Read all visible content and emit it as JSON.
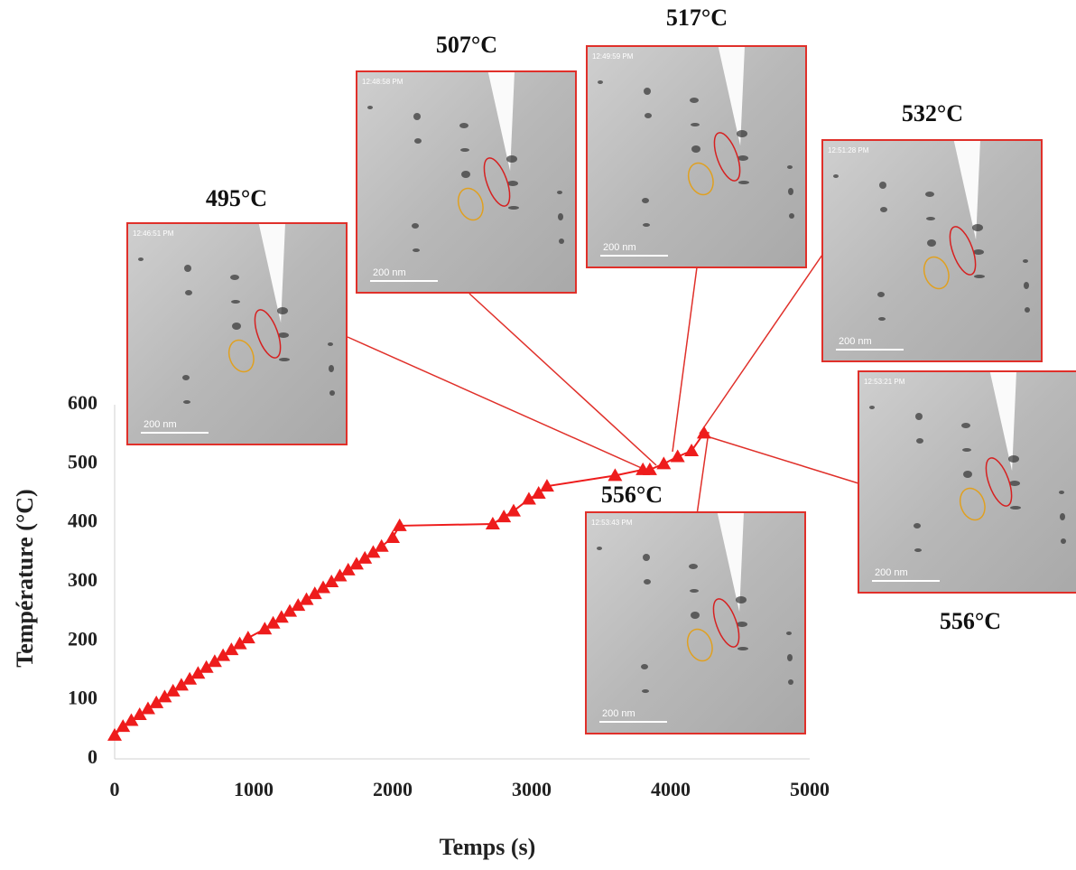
{
  "chart_data": {
    "type": "line",
    "x_label": "Temps (s)",
    "y_label": "Température (°C)",
    "x": [
      0,
      60,
      120,
      180,
      240,
      300,
      360,
      420,
      480,
      540,
      600,
      660,
      720,
      780,
      840,
      900,
      960,
      1080,
      1140,
      1200,
      1260,
      1320,
      1380,
      1440,
      1500,
      1560,
      1620,
      1680,
      1740,
      1800,
      1860,
      1920,
      2000,
      2050,
      2720,
      2800,
      2870,
      2980,
      3050,
      3110,
      3600,
      3800,
      3850,
      3950,
      4050,
      4150,
      4240
    ],
    "values": [
      40,
      55,
      65,
      75,
      85,
      95,
      105,
      115,
      125,
      135,
      145,
      155,
      165,
      175,
      185,
      195,
      205,
      220,
      230,
      240,
      250,
      260,
      270,
      280,
      290,
      300,
      310,
      320,
      330,
      340,
      350,
      360,
      375,
      395,
      398,
      410,
      420,
      440,
      450,
      462,
      480,
      490,
      490,
      500,
      512,
      522,
      552
    ],
    "color": "#ee1c1c",
    "xlim": [
      0,
      5000
    ],
    "xticks": [
      0,
      1000,
      2000,
      3000,
      4000,
      5000
    ],
    "ylim": [
      0,
      600
    ],
    "yticks": [
      0,
      100,
      200,
      300,
      400,
      500,
      600
    ],
    "grid": false
  },
  "insets": [
    {
      "label": "495°C",
      "timestamp": "12:46:51 PM",
      "scale_bar": "200 nm"
    },
    {
      "label": "507°C",
      "timestamp": "12:48:58 PM",
      "scale_bar": "200 nm"
    },
    {
      "label": "517°C",
      "timestamp": "12:49:59 PM",
      "scale_bar": "200 nm"
    },
    {
      "label": "532°C",
      "timestamp": "12:51:28 PM",
      "scale_bar": "200 nm"
    },
    {
      "label": "556°C",
      "timestamp": "12:53:21 PM",
      "scale_bar": "200 nm"
    },
    {
      "label": "556°C",
      "timestamp": "12:53:43 PM",
      "scale_bar": "200 nm"
    }
  ]
}
